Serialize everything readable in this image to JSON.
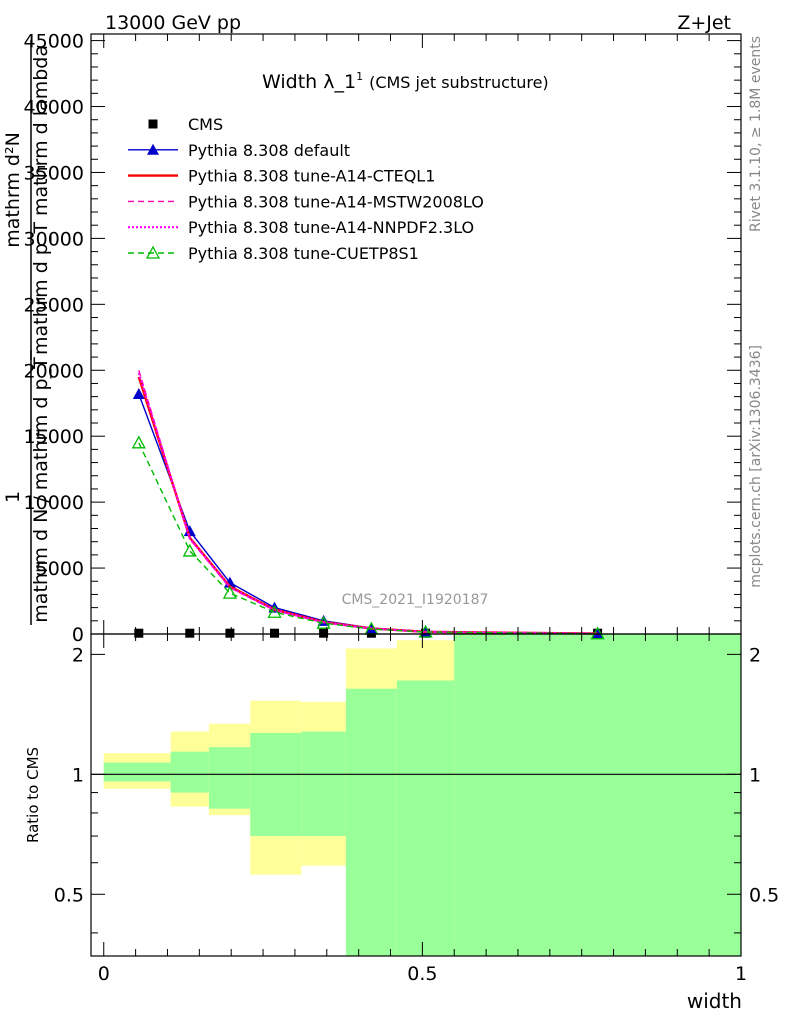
{
  "header": {
    "left": "13000 GeV pp",
    "right": "Z+Jet"
  },
  "plot_title": {
    "main": "Width λ_1",
    "superscript": "1",
    "sub": "(CMS jet substructure)"
  },
  "side_text": {
    "rivet": "Rivet 3.1.10, ≥ 1.8M events",
    "mcplots": "mcplots.cern.ch [arXiv:1306.3436]"
  },
  "watermark": "CMS_2021_I1920187",
  "y_axis_label": {
    "top_line": "mathrm d²N",
    "top_denominator": "mathrm d p_T mathrm d lambda",
    "one": "1",
    "bottom": "mathrm d N / mathrm d p_T"
  },
  "ratio_label": "Ratio to CMS",
  "xlabel": "width",
  "colors": {
    "cms": "#000000",
    "default": "#0000cc",
    "cteql1": "#ff0000",
    "mstw": "#ff00aa",
    "nnpdf": "#ff00ff",
    "cuetp": "#00bb00",
    "band_inner": "#99ff99",
    "band_outer": "#ffff99"
  },
  "chart_data": {
    "type": "line",
    "xlim": [
      -0.02,
      1.0
    ],
    "ylim": [
      0,
      45500
    ],
    "ratio_ylim": [
      0.35,
      2.25
    ],
    "x_ticks": [
      "0",
      "0.5",
      "1"
    ],
    "x_tick_values": [
      0,
      0.5,
      1
    ],
    "y_ticks": [
      "0",
      "5000",
      "10000",
      "15000",
      "20000",
      "25000",
      "30000",
      "35000",
      "40000",
      "45000"
    ],
    "y_tick_values": [
      0,
      5000,
      10000,
      15000,
      20000,
      25000,
      30000,
      35000,
      40000,
      45000
    ],
    "ratio_ticks": [
      "0.5",
      "1",
      "2"
    ],
    "ratio_tick_values": [
      0.5,
      1,
      2
    ],
    "bins": [
      [
        0,
        0.105
      ],
      [
        0.105,
        0.165
      ],
      [
        0.165,
        0.23
      ],
      [
        0.23,
        0.31
      ],
      [
        0.31,
        0.38
      ],
      [
        0.38,
        0.46
      ],
      [
        0.46,
        0.55
      ],
      [
        0.55,
        1.0
      ]
    ],
    "x": [
      0.055,
      0.135,
      0.198,
      0.268,
      0.345,
      0.42,
      0.505,
      0.775
    ],
    "series": [
      {
        "name": "CMS",
        "key": "cms",
        "style": "marker-square",
        "values": [
          60,
          60,
          60,
          60,
          60,
          60,
          60,
          60
        ]
      },
      {
        "name": "Pythia 8.308 default",
        "key": "default",
        "style": "solid-triangle",
        "values": [
          18200,
          7800,
          3900,
          2000,
          1000,
          450,
          180,
          30
        ]
      },
      {
        "name": "Pythia 8.308 tune-A14-CTEQL1",
        "key": "cteql1",
        "style": "solid-thick",
        "values": [
          19500,
          7300,
          3600,
          1850,
          900,
          420,
          170,
          28
        ]
      },
      {
        "name": "Pythia 8.308 tune-A14-MSTW2008LO",
        "key": "mstw",
        "style": "dashed",
        "values": [
          20000,
          7200,
          3500,
          1800,
          880,
          410,
          165,
          27
        ]
      },
      {
        "name": "Pythia 8.308 tune-A14-NNPDF2.3LO",
        "key": "nnpdf",
        "style": "dotted",
        "values": [
          19800,
          7250,
          3550,
          1820,
          890,
          415,
          168,
          27
        ]
      },
      {
        "name": "Pythia 8.308 tune-CUETP8S1",
        "key": "cuetp",
        "style": "dashed-open-triangle",
        "values": [
          14500,
          6300,
          3100,
          1650,
          820,
          380,
          150,
          25
        ]
      }
    ],
    "ratio_band_inner": [
      [
        0.96,
        1.07
      ],
      [
        0.9,
        1.14
      ],
      [
        0.82,
        1.17
      ],
      [
        0.7,
        1.27
      ],
      [
        0.7,
        1.28
      ],
      [
        0.35,
        1.64
      ],
      [
        0.35,
        1.72
      ],
      [
        0.35,
        2.25
      ]
    ],
    "ratio_band_outer": [
      [
        0.92,
        1.13
      ],
      [
        0.83,
        1.28
      ],
      [
        0.79,
        1.34
      ],
      [
        0.56,
        1.53
      ],
      [
        0.59,
        1.52
      ],
      [
        0.42,
        2.07
      ],
      [
        0.35,
        2.17
      ],
      [
        0.35,
        2.25
      ]
    ]
  }
}
